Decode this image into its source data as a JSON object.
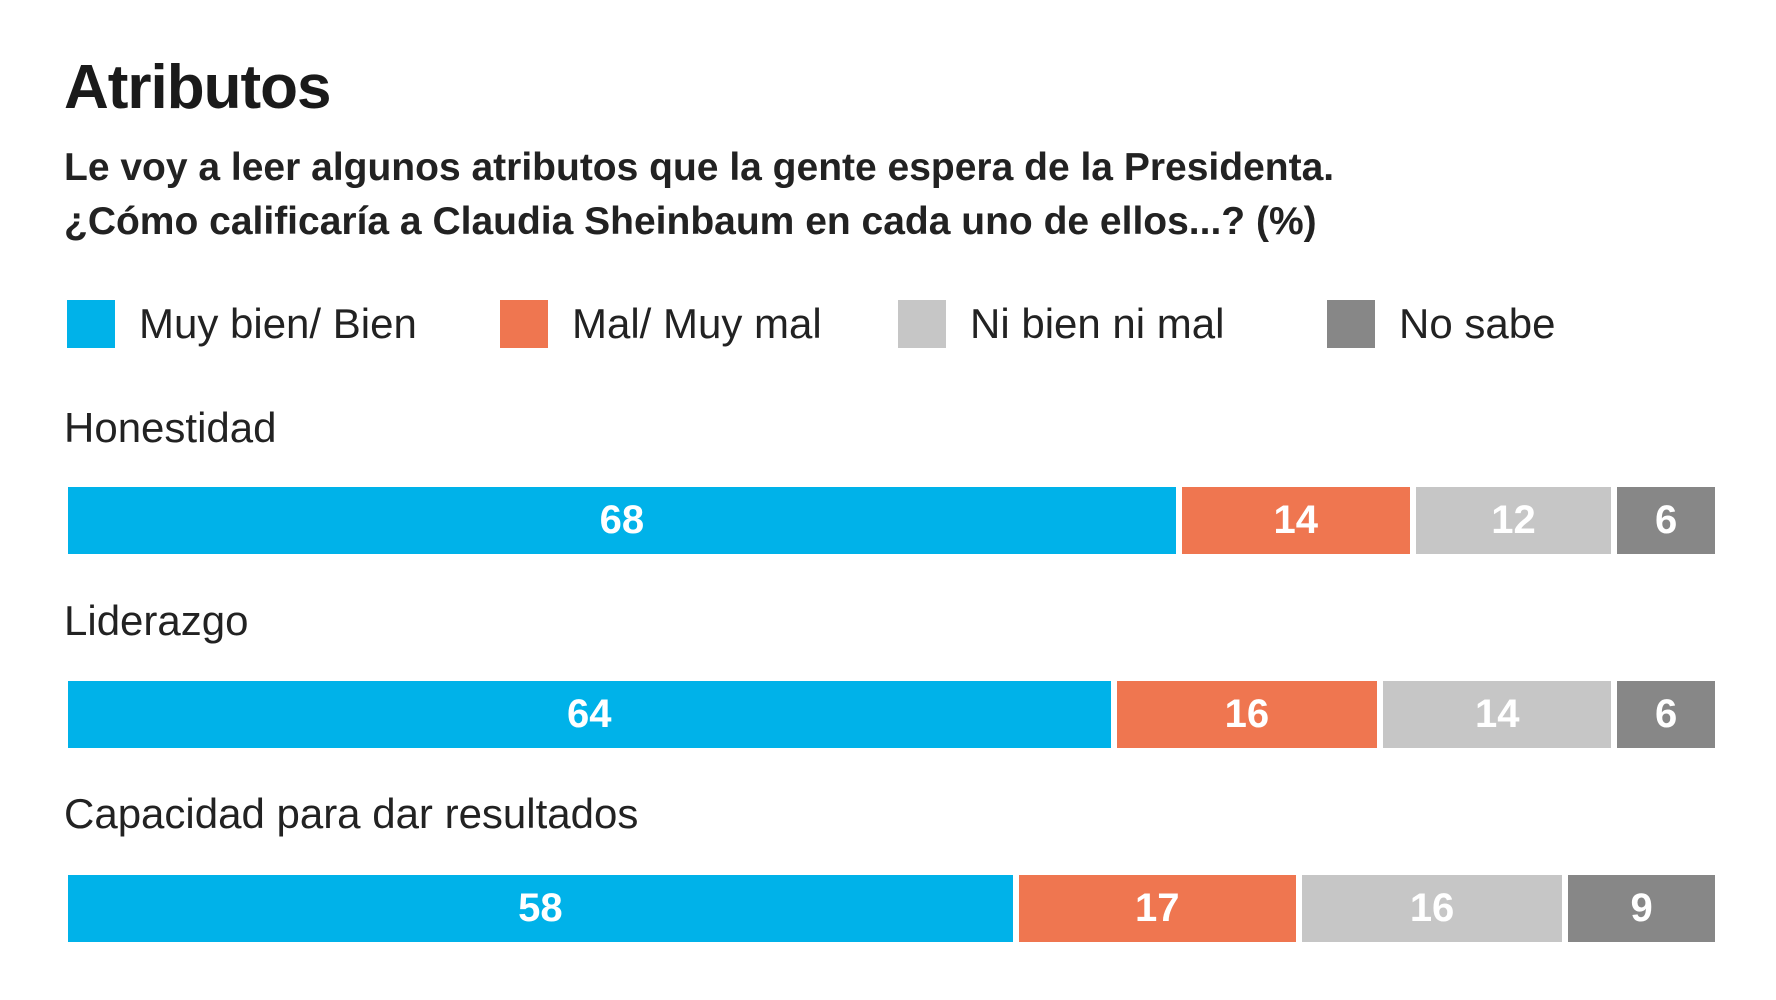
{
  "chart_data": {
    "type": "bar",
    "orientation": "horizontal-stacked-100",
    "title": "Atributos",
    "subtitle": [
      "Le voy a leer algunos atributos que la gente espera de la Presidenta.",
      "¿Cómo calificaría a Claudia Sheinbaum en cada uno de ellos...?  (%)"
    ],
    "legend": [
      "Muy bien/ Bien",
      "Mal/ Muy mal",
      "Ni bien ni mal",
      "No sabe"
    ],
    "legend_placement": "top",
    "colors": [
      "#00b2e9",
      "#ef7650",
      "#c6c6c6",
      "#878787"
    ],
    "categories": [
      "Honestidad",
      "Liderazgo",
      "Capacidad para dar resultados"
    ],
    "series": [
      {
        "name": "Muy bien/ Bien",
        "values": [
          68,
          64,
          58
        ]
      },
      {
        "name": "Mal/ Muy mal",
        "values": [
          14,
          16,
          17
        ]
      },
      {
        "name": "Ni bien ni mal",
        "values": [
          12,
          14,
          16
        ]
      },
      {
        "name": "No sabe",
        "values": [
          6,
          6,
          9
        ]
      }
    ],
    "xlim": [
      0,
      100
    ],
    "grid": false
  }
}
